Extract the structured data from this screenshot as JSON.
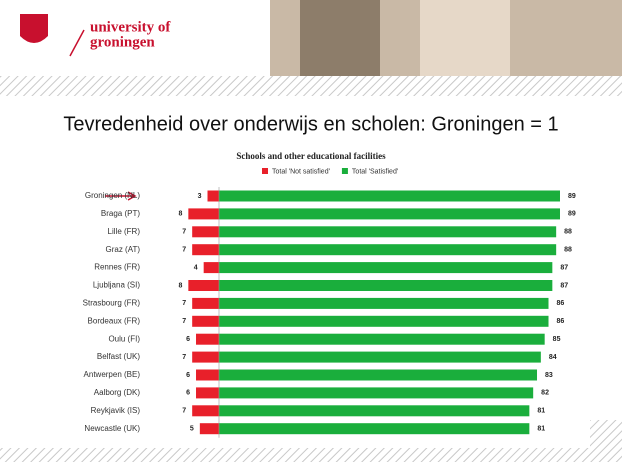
{
  "header": {
    "logo_line1": "university of",
    "logo_line2": "groningen"
  },
  "slide_title": "Tevredenheid over onderwijs en scholen: Groningen = 1",
  "chart_data": {
    "type": "bar",
    "orientation": "horizontal",
    "stacked": "diverging",
    "title": "Schools and other educational facilities",
    "categories": [
      "Groningen (NL)",
      "Braga (PT)",
      "Lille (FR)",
      "Graz (AT)",
      "Rennes (FR)",
      "Ljubljana (SI)",
      "Strasbourg (FR)",
      "Bordeaux (FR)",
      "Oulu (FI)",
      "Belfast (UK)",
      "Antwerpen (BE)",
      "Aalborg (DK)",
      "Reykjavik (IS)",
      "Newcastle (UK)"
    ],
    "series": [
      {
        "name": "Total 'Not satisfied'",
        "color": "#e8202a",
        "values": [
          3,
          8,
          7,
          7,
          4,
          8,
          7,
          7,
          6,
          7,
          6,
          6,
          7,
          5
        ]
      },
      {
        "name": "Total 'Satisfied'",
        "color": "#1aae3c",
        "values": [
          89,
          89,
          88,
          88,
          87,
          87,
          86,
          86,
          85,
          84,
          83,
          82,
          81,
          81
        ]
      }
    ],
    "legend": "top"
  }
}
